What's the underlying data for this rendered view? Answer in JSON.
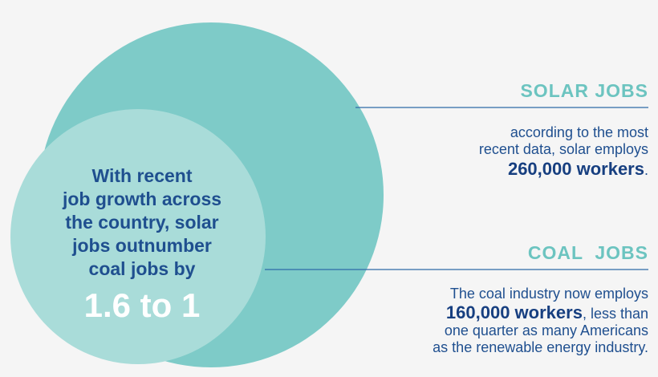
{
  "colors": {
    "big_circle": "#7ecbc8",
    "small_circle": "#a9dcd9",
    "line": "#2e6aa8",
    "heading": "#6cc4c0",
    "text": "#1f4f8f",
    "background": "#f5f5f5"
  },
  "solar": {
    "heading": "SOLAR JOBS",
    "line1": "according to the most",
    "line2": "recent data, solar employs",
    "workers": "260,000 workers",
    "trailing": "."
  },
  "coal": {
    "heading": "COAL  JOBS",
    "line1": "The coal industry now employs",
    "workers": "160,000 workers",
    "after_workers": ", less than",
    "line3": "one quarter as many Americans",
    "line4": "as the renewable energy industry."
  },
  "center": {
    "line1": "With recent",
    "line2": "job growth across",
    "line3": "the country, solar",
    "line4": "jobs outnumber",
    "line5": "coal jobs by",
    "ratio": "1.6 to 1"
  }
}
